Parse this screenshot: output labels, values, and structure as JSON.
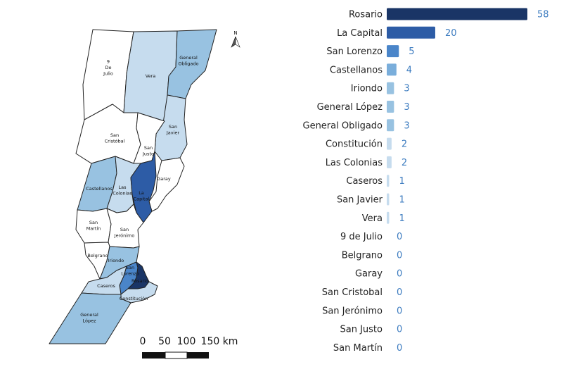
{
  "chart_data": {
    "type": "bar",
    "orientation": "horizontal",
    "categories": [
      "Rosario",
      "La Capital",
      "San Lorenzo",
      "Castellanos",
      "Iriondo",
      "General López",
      "General Obligado",
      "Constitución",
      "Las Colonias",
      "Caseros",
      "San Javier",
      "Vera",
      "9 de Julio",
      "Belgrano",
      "Garay",
      "San Cristobal",
      "San Jerónimo",
      "San Justo",
      "San Martín"
    ],
    "values": [
      58,
      20,
      5,
      4,
      3,
      3,
      3,
      2,
      2,
      1,
      1,
      1,
      0,
      0,
      0,
      0,
      0,
      0,
      0
    ],
    "xlim": [
      0,
      58
    ],
    "grid": false
  },
  "map": {
    "north_label": "N",
    "scale_labels": [
      "0",
      "50",
      "100",
      "150 km"
    ],
    "departments": [
      {
        "id": "9-de-julio",
        "lines": [
          "9",
          "De",
          "Julio"
        ],
        "value": 0
      },
      {
        "id": "vera",
        "lines": [
          "Vera"
        ],
        "value": 1
      },
      {
        "id": "general-obligado",
        "lines": [
          "General",
          "Obligado"
        ],
        "value": 3
      },
      {
        "id": "san-cristobal",
        "lines": [
          "San",
          "Cristóbal"
        ],
        "value": 0
      },
      {
        "id": "san-javier",
        "lines": [
          "San",
          "Javier"
        ],
        "value": 1
      },
      {
        "id": "san-justo",
        "lines": [
          "San",
          "Justo"
        ],
        "value": 0
      },
      {
        "id": "garay",
        "lines": [
          "Garay"
        ],
        "value": 0
      },
      {
        "id": "castellanos",
        "lines": [
          "Castellanos"
        ],
        "value": 4
      },
      {
        "id": "las-colonias",
        "lines": [
          "Las",
          "Colonias"
        ],
        "value": 2
      },
      {
        "id": "la-capital",
        "lines": [
          "La",
          "Capital"
        ],
        "value": 20
      },
      {
        "id": "san-martin",
        "lines": [
          "San",
          "Martín"
        ],
        "value": 0
      },
      {
        "id": "san-jeronimo",
        "lines": [
          "San",
          "Jerónimo"
        ],
        "value": 0
      },
      {
        "id": "belgrano",
        "lines": [
          "Belgrano"
        ],
        "value": 0
      },
      {
        "id": "iriondo",
        "lines": [
          "Iriondo"
        ],
        "value": 3
      },
      {
        "id": "san-lorenzo",
        "lines": [
          "San",
          "Lorenzo"
        ],
        "value": 5
      },
      {
        "id": "rosario",
        "lines": [
          "Rosario"
        ],
        "value": 58
      },
      {
        "id": "caseros",
        "lines": [
          "Caseros"
        ],
        "value": 1
      },
      {
        "id": "constitucion",
        "lines": [
          "Constitución"
        ],
        "value": 2
      },
      {
        "id": "general-lopez",
        "lines": [
          "General",
          "López"
        ],
        "value": 3
      }
    ]
  },
  "colors": {
    "dark_navy": "#1a3566",
    "dark_blue": "#2d5ca6",
    "mid_blue": "#4a85c9",
    "light_blue": "#98c2e1",
    "pale_blue": "#c6dcee",
    "zero_fill": "#ffffff",
    "value_text": "#3d7cc0"
  }
}
